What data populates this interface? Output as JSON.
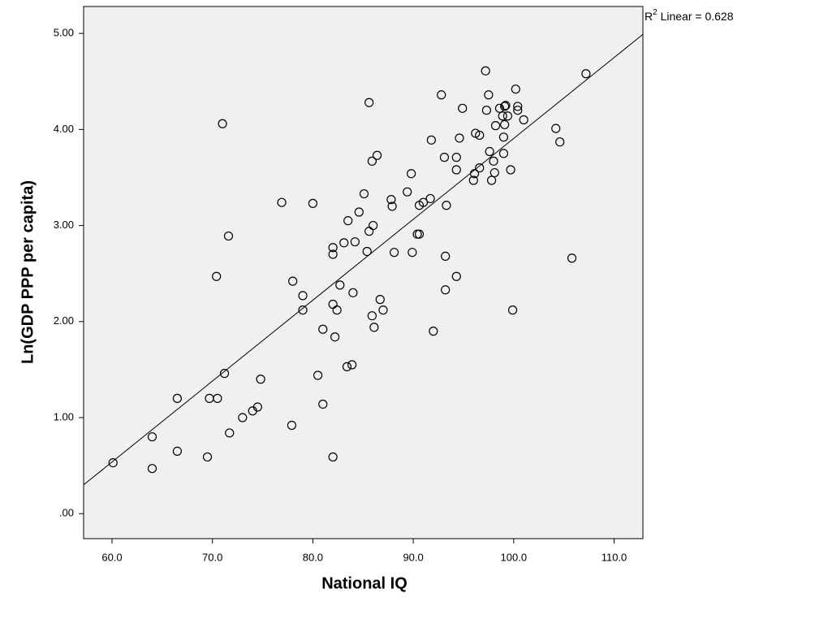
{
  "chart_data": {
    "type": "scatter",
    "x_label": "National IQ",
    "y_label": "Ln(GDP PPP per capita)",
    "annotation": {
      "prefix": "R",
      "sup": "2",
      "text": " Linear = 0.628"
    },
    "xlim": [
      57.17,
      112.87
    ],
    "ylim": [
      -0.26,
      5.28
    ],
    "xticks": [
      {
        "value": 60,
        "label": "60.0"
      },
      {
        "value": 70,
        "label": "70.0"
      },
      {
        "value": 80,
        "label": "80.0"
      },
      {
        "value": 90,
        "label": "90.0"
      },
      {
        "value": 100,
        "label": "100.0"
      },
      {
        "value": 110,
        "label": "110.0"
      }
    ],
    "yticks": [
      {
        "value": 0,
        "label": ".00"
      },
      {
        "value": 1,
        "label": "1.00"
      },
      {
        "value": 2,
        "label": "2.00"
      },
      {
        "value": 3,
        "label": "3.00"
      },
      {
        "value": 4,
        "label": "4.00"
      },
      {
        "value": 5,
        "label": "5.00"
      }
    ],
    "background": "#f0f0f0",
    "marker_color": "#000000",
    "fit_line": {
      "x": [
        57.17,
        112.87
      ],
      "y": [
        0.3,
        4.99
      ]
    },
    "x": [
      60.1,
      64.0,
      64.0,
      66.5,
      66.5,
      69.5,
      69.7,
      70.5,
      70.4,
      71.0,
      71.2,
      71.6,
      71.7,
      73.0,
      74.0,
      74.5,
      74.8,
      76.9,
      77.9,
      78.0,
      79.0,
      79.0,
      80.0,
      80.5,
      81.0,
      81.0,
      82.0,
      82.0,
      82.0,
      82.0,
      82.2,
      82.4,
      82.7,
      83.1,
      83.4,
      83.5,
      83.9,
      84.0,
      84.2,
      84.6,
      85.1,
      85.4,
      85.6,
      85.6,
      85.9,
      85.9,
      86.0,
      86.1,
      86.4,
      86.7,
      87.0,
      87.8,
      87.9,
      88.1,
      89.4,
      89.8,
      89.9,
      90.4,
      90.6,
      90.6,
      91.0,
      91.7,
      91.8,
      92.0,
      92.8,
      93.1,
      93.2,
      93.2,
      93.3,
      94.3,
      94.3,
      94.3,
      94.6,
      94.9,
      96.0,
      96.1,
      96.2,
      96.6,
      96.6,
      97.2,
      97.3,
      97.5,
      97.6,
      97.8,
      98.0,
      98.1,
      98.2,
      98.6,
      98.9,
      99.0,
      99.0,
      99.1,
      99.1,
      99.2,
      99.4,
      99.7,
      99.9,
      100.2,
      100.4,
      100.4,
      101.0,
      104.2,
      104.6,
      105.8,
      107.2
    ],
    "y": [
      0.53,
      0.8,
      0.47,
      1.2,
      0.65,
      0.59,
      1.2,
      1.2,
      2.47,
      4.06,
      1.46,
      2.89,
      0.84,
      1.0,
      1.07,
      1.11,
      1.4,
      3.24,
      0.92,
      2.42,
      2.27,
      2.12,
      3.23,
      1.44,
      1.92,
      1.14,
      2.77,
      2.7,
      2.18,
      0.59,
      1.84,
      2.12,
      2.38,
      2.82,
      1.53,
      3.05,
      1.55,
      2.3,
      2.83,
      3.14,
      3.33,
      2.73,
      4.28,
      2.94,
      3.67,
      2.06,
      3.0,
      1.94,
      3.73,
      2.23,
      2.12,
      3.27,
      3.2,
      2.72,
      3.35,
      3.54,
      2.72,
      2.91,
      2.91,
      3.21,
      3.24,
      3.28,
      3.89,
      1.9,
      4.36,
      3.71,
      2.68,
      2.33,
      3.21,
      3.58,
      3.71,
      2.47,
      3.91,
      4.22,
      3.47,
      3.54,
      3.96,
      3.94,
      3.6,
      4.61,
      4.2,
      4.36,
      3.77,
      3.47,
      3.67,
      3.55,
      4.04,
      4.22,
      4.14,
      3.92,
      3.75,
      4.24,
      4.05,
      4.25,
      4.14,
      3.58,
      2.12,
      4.42,
      4.24,
      4.2,
      4.1,
      4.01,
      3.87,
      2.66,
      4.58
    ]
  }
}
